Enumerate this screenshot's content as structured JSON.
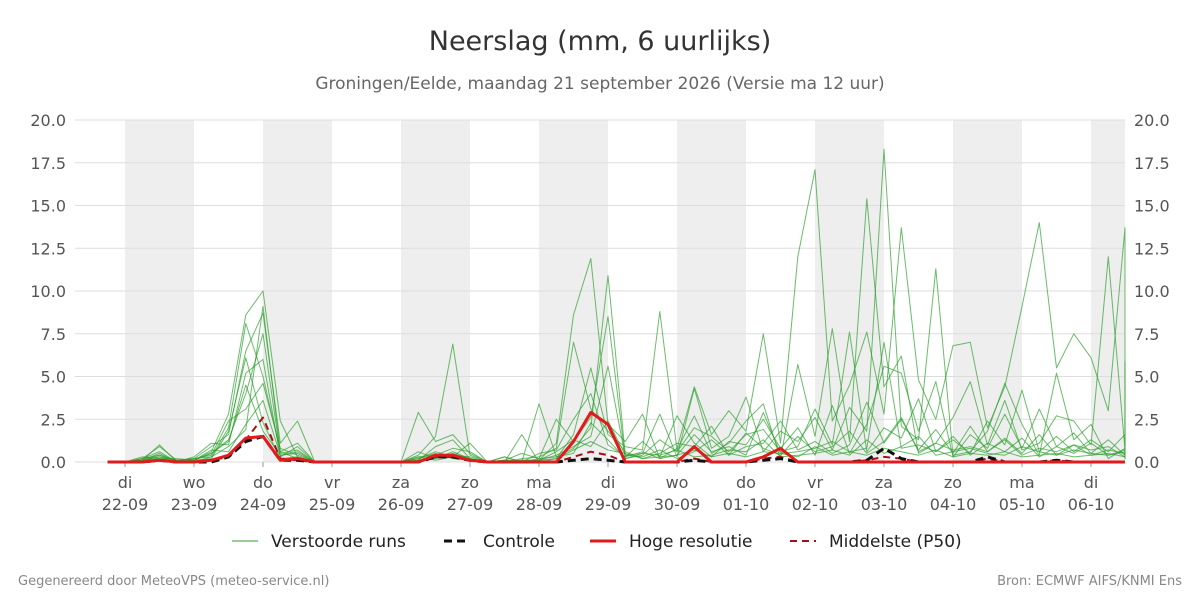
{
  "title": "Neerslag (mm, 6 uurlijks)",
  "subtitle": "Groningen/Eelde, maandag 21 september 2026 (Versie ma 12 uur)",
  "footer_left": "Gegenereerd door MeteoVPS (meteo-service.nl)",
  "footer_right": "Bron: ECMWF AIFS/KNMI Ens",
  "colors": {
    "ensemble": "#2ca02c",
    "control": "#111111",
    "hires": "#e31a1c",
    "median": "#a50f15",
    "weekend_shade": "#eeeeee",
    "grid": "#dddddd"
  },
  "chart_data": {
    "type": "line",
    "x_unit": "days from 22-09 00 UTC, 6-hourly steps",
    "ylim": [
      0,
      20
    ],
    "yticks": [
      "0.0",
      "2.5",
      "5.0",
      "7.5",
      "10.0",
      "12.5",
      "15.0",
      "17.5",
      "20.0"
    ],
    "grid": true,
    "legend_position": "bottom",
    "days": [
      {
        "weekday": "di",
        "date": "22-09"
      },
      {
        "weekday": "wo",
        "date": "23-09"
      },
      {
        "weekday": "do",
        "date": "24-09"
      },
      {
        "weekday": "vr",
        "date": "25-09"
      },
      {
        "weekday": "za",
        "date": "26-09"
      },
      {
        "weekday": "zo",
        "date": "27-09"
      },
      {
        "weekday": "ma",
        "date": "28-09"
      },
      {
        "weekday": "di",
        "date": "29-09"
      },
      {
        "weekday": "wo",
        "date": "30-09"
      },
      {
        "weekday": "do",
        "date": "01-10"
      },
      {
        "weekday": "vr",
        "date": "02-10"
      },
      {
        "weekday": "za",
        "date": "03-10"
      },
      {
        "weekday": "zo",
        "date": "04-10"
      },
      {
        "weekday": "ma",
        "date": "05-10"
      },
      {
        "weekday": "di",
        "date": "06-10"
      }
    ],
    "shaded_bands": [
      [
        0,
        1
      ],
      [
        2,
        3
      ],
      [
        4,
        5
      ],
      [
        6,
        7
      ],
      [
        8,
        9
      ],
      [
        10,
        11
      ],
      [
        12,
        13
      ],
      [
        14,
        14.5
      ]
    ],
    "x_start": -0.25,
    "x_step": 0.25,
    "legend": [
      "Verstoorde runs",
      "Controle",
      "Hoge resolutie",
      "Middelste (P50)"
    ],
    "series": [
      {
        "name": "Hoge resolutie",
        "role": "hires",
        "values": [
          0,
          0,
          0,
          0.1,
          0,
          0,
          0.1,
          0.4,
          1.4,
          1.5,
          0.1,
          0.2,
          0,
          0,
          0,
          0,
          0,
          0,
          0,
          0.4,
          0.4,
          0.1,
          0,
          0,
          0,
          0,
          0,
          1.2,
          2.9,
          2.2,
          0,
          0,
          0,
          0,
          0.9,
          0,
          0,
          0,
          0.3,
          0.8,
          0,
          0,
          0,
          0,
          0,
          0,
          0,
          0,
          0,
          0,
          0,
          0,
          0,
          0,
          0,
          0,
          0,
          0,
          0,
          0,
          0,
          0,
          0,
          0,
          0,
          0
        ]
      },
      {
        "name": "Controle",
        "role": "control",
        "values": [
          0,
          0,
          0,
          0.1,
          0,
          0,
          0,
          0.3,
          1.2,
          1.5,
          0.1,
          0.1,
          0,
          0,
          0,
          0,
          0,
          0,
          0,
          0.3,
          0.3,
          0.1,
          0,
          0,
          0,
          0,
          0,
          0.1,
          0.2,
          0.1,
          0,
          0,
          0,
          0,
          0.1,
          0,
          0,
          0,
          0.1,
          0.2,
          0,
          0,
          0,
          0,
          0.1,
          0.8,
          0.2,
          0,
          0,
          0,
          0,
          0.3,
          0,
          0,
          0,
          0.1,
          0,
          0,
          0,
          0,
          0,
          0,
          0,
          0,
          0,
          0
        ]
      },
      {
        "name": "Middelste (P50)",
        "role": "median",
        "values": [
          0,
          0,
          0,
          0.1,
          0,
          0,
          0.1,
          0.3,
          1.3,
          2.6,
          0.2,
          0.1,
          0,
          0,
          0,
          0,
          0,
          0,
          0,
          0.3,
          0.3,
          0.1,
          0,
          0,
          0,
          0,
          0,
          0.3,
          0.6,
          0.4,
          0,
          0,
          0,
          0,
          0.2,
          0,
          0,
          0,
          0.2,
          0.3,
          0,
          0,
          0,
          0,
          0.1,
          0.3,
          0.2,
          0,
          0,
          0,
          0,
          0.2,
          0,
          0,
          0,
          0.1,
          0,
          0,
          0,
          0,
          0,
          0,
          0,
          0,
          0,
          0
        ]
      },
      {
        "name": "Verstoorde runs",
        "role": "ensemble",
        "values": [
          0,
          0,
          0.1,
          0.4,
          0,
          0.1,
          0.6,
          2.8,
          8.6,
          10,
          2.4,
          0.3,
          0,
          0,
          0,
          0,
          0,
          0,
          2.9,
          1.2,
          1.6,
          0.5,
          0,
          0.3,
          0,
          0.1,
          1.1,
          8.6,
          11.9,
          2.2,
          1.2,
          2.8,
          0.2,
          0.8,
          4.4,
          1.6,
          3.0,
          1.8,
          7.5,
          1.1,
          12,
          17.1,
          2.4,
          4.5,
          7.6,
          2.8,
          13.7,
          4.8,
          2.5,
          6.8,
          7.0,
          2.0,
          4.4,
          9.1,
          14.0,
          5.5,
          7.5,
          6.1,
          3.0,
          13.7,
          5.6,
          1.9,
          7.3,
          0.9,
          3.2,
          6.6
        ]
      },
      {
        "name": "Verstoorde runs",
        "role": "ensemble",
        "values": [
          0,
          0,
          0.2,
          0.9,
          0.1,
          0.2,
          0.9,
          1.6,
          6.5,
          8.7,
          1.1,
          2.4,
          0,
          0,
          0,
          0,
          0,
          0,
          0.4,
          1.5,
          6.9,
          0.4,
          0,
          0,
          1.6,
          0,
          0.2,
          1.6,
          5.5,
          1.6,
          0.9,
          0.7,
          8.8,
          0.7,
          2.7,
          0.5,
          1.1,
          2.4,
          3.4,
          0.2,
          5.7,
          1.5,
          7.8,
          1.2,
          15.4,
          4.4,
          6.2,
          0.5,
          1.1,
          2.6,
          4.7,
          1.0,
          3.6,
          0.7,
          1.1,
          2.7,
          2.4,
          1.0,
          12.0,
          0.7,
          1.5,
          5.7,
          2.1,
          1.3,
          4.0,
          4.6
        ]
      },
      {
        "name": "Verstoorde runs",
        "role": "ensemble",
        "values": [
          0,
          0,
          0.1,
          1.0,
          0,
          0,
          0.3,
          2.0,
          8.1,
          5.0,
          0.6,
          1.1,
          0,
          0,
          0,
          0,
          0,
          0,
          0.2,
          0.6,
          0.3,
          1.1,
          0,
          0.1,
          0,
          3.4,
          0.3,
          0.8,
          2.0,
          10.9,
          0.4,
          0.5,
          2.8,
          0.3,
          4.3,
          0.8,
          1.5,
          3.8,
          0.6,
          1.8,
          1.2,
          2.6,
          0.7,
          3.2,
          1.8,
          18.3,
          2.1,
          1.3,
          11.3,
          0.4,
          0.6,
          1.8,
          4.6,
          2.2,
          0.4,
          5.2,
          1.3,
          2.2,
          0.2,
          0.8,
          1.3,
          2.4,
          0.4,
          0.6,
          0.8,
          5.9
        ]
      },
      {
        "name": "Verstoorde runs",
        "role": "ensemble",
        "values": [
          0,
          0,
          0.3,
          0.2,
          0.2,
          0.1,
          0.5,
          1.3,
          4.0,
          7.5,
          0.5,
          0.7,
          0,
          0,
          0,
          0,
          0,
          0,
          0.1,
          0.9,
          1.3,
          0.2,
          0,
          0.3,
          0,
          0.5,
          0.7,
          2.5,
          4.0,
          1.0,
          0.3,
          1.2,
          0.3,
          2.7,
          1.1,
          0.3,
          1.2,
          1.0,
          2.5,
          0.8,
          2.0,
          0.4,
          3.3,
          0.5,
          2.2,
          5.6,
          5.2,
          1.8,
          4.7,
          0.3,
          1.6,
          0.8,
          2.8,
          0.8,
          3.1,
          0.9,
          1.7,
          0.5,
          1.3,
          0.4,
          2.3,
          0.6,
          1.4,
          0.4,
          0.9,
          1.2
        ]
      },
      {
        "name": "Verstoorde runs",
        "role": "ensemble",
        "values": [
          0,
          0,
          0.2,
          0.6,
          0,
          0.3,
          1.1,
          1.0,
          5.2,
          6.0,
          0.3,
          0.9,
          0,
          0,
          0,
          0,
          0,
          0,
          0.3,
          0.4,
          0.8,
          0.6,
          0,
          0.1,
          0.5,
          0.2,
          2.5,
          1.2,
          2.6,
          8.5,
          0.2,
          0.4,
          1.3,
          0.6,
          2.0,
          1.5,
          0.6,
          1.6,
          1.9,
          0.6,
          0.9,
          3.1,
          1.0,
          7.6,
          0.6,
          2.0,
          1.4,
          3.7,
          0.6,
          1.3,
          0.5,
          2.4,
          1.0,
          4.2,
          0.6,
          1.5,
          0.6,
          1.3,
          0.6,
          1.6,
          0.4,
          1.8,
          0.3,
          0.9,
          0.3,
          1.5
        ]
      },
      {
        "name": "Verstoorde runs",
        "role": "ensemble",
        "values": [
          0,
          0,
          0.1,
          0.3,
          0.1,
          0.2,
          0.4,
          2.4,
          3.1,
          4.6,
          0.8,
          0.4,
          0,
          0,
          0,
          0,
          0,
          0,
          0.6,
          0.2,
          0.6,
          0.2,
          0,
          0,
          0.2,
          0.3,
          0.8,
          7.0,
          3.1,
          1.8,
          0.6,
          0.2,
          0.5,
          1.1,
          0.9,
          2.1,
          0.4,
          0.9,
          1.1,
          2.4,
          0.7,
          1.2,
          0.5,
          1.0,
          3.5,
          1.1,
          2.5,
          0.7,
          1.9,
          0.5,
          2.1,
          0.6,
          1.4,
          0.5,
          1.6,
          0.4,
          1.0,
          0.7,
          0.9,
          0.3,
          1.0,
          0.5,
          0.8,
          0.2,
          0.6,
          0.4
        ]
      },
      {
        "name": "Verstoorde runs",
        "role": "ensemble",
        "values": [
          0,
          0,
          0.1,
          0.5,
          0,
          0.1,
          0.7,
          0.6,
          2.2,
          3.6,
          0.4,
          0.6,
          0,
          0,
          0,
          0,
          0,
          0,
          0.1,
          0.3,
          0.4,
          0.3,
          0,
          0.1,
          0,
          0.1,
          0.4,
          0.9,
          1.5,
          5.6,
          0.3,
          0.6,
          0.2,
          0.4,
          1.6,
          0.6,
          0.9,
          0.4,
          2.9,
          0.5,
          0.6,
          0.8,
          1.2,
          0.6,
          0.8,
          7.0,
          0.8,
          1.0,
          0.6,
          1.5,
          0.4,
          1.1,
          0.6,
          1.4,
          0.3,
          0.9,
          0.5,
          1.1,
          0.4,
          0.7,
          0.3,
          0.8,
          0.4,
          0.6,
          0.2,
          0.9
        ]
      },
      {
        "name": "Verstoorde runs",
        "role": "ensemble",
        "values": [
          0,
          0,
          0.2,
          0.4,
          0.1,
          0.1,
          0.2,
          1.8,
          6.1,
          2.3,
          0.2,
          0.3,
          0,
          0,
          0,
          0,
          0,
          0,
          0.2,
          0.5,
          0.2,
          0.1,
          0,
          0,
          0.1,
          0.1,
          0.6,
          1.3,
          0.9,
          2.4,
          0.4,
          0.3,
          0.7,
          0.2,
          0.6,
          1.3,
          0.4,
          1.7,
          0.8,
          0.4,
          1.5,
          0.6,
          0.9,
          1.8,
          0.5,
          1.2,
          2.6,
          0.6,
          1.1,
          0.7,
          0.9,
          0.6,
          1.3,
          0.4,
          0.8,
          0.6,
          1.0,
          0.4,
          0.7,
          0.5,
          0.6,
          0.3,
          0.7,
          0.3,
          0.5,
          0.3
        ]
      },
      {
        "name": "Verstoorde runs",
        "role": "ensemble",
        "values": [
          0,
          0,
          0.1,
          0.2,
          0,
          0.2,
          0.3,
          0.9,
          1.9,
          9.1,
          0.6,
          0.2,
          0,
          0,
          0,
          0,
          0,
          0,
          0.1,
          0.2,
          0.5,
          0.2,
          0,
          0,
          0,
          0.2,
          0.3,
          0.5,
          2.3,
          1.3,
          0.2,
          0.5,
          0.4,
          0.7,
          0.3,
          0.4,
          0.7,
          0.6,
          1.3,
          0.3,
          0.4,
          0.5,
          0.7,
          0.4,
          1.3,
          0.5,
          0.9,
          1.5,
          0.4,
          0.6,
          0.8,
          0.5,
          0.4,
          0.9,
          0.6,
          0.4,
          0.7,
          0.5,
          0.4,
          0.6,
          0.3,
          0.5,
          0.4,
          0.4,
          0.3,
          0.6
        ]
      },
      {
        "name": "Verstoorde runs",
        "role": "ensemble",
        "values": [
          0,
          0,
          0.1,
          0.3,
          0,
          0.1,
          0.5,
          1.2,
          4.5,
          1.8,
          0.4,
          0.5,
          0,
          0,
          0,
          0,
          0,
          0,
          0.3,
          0.1,
          0.3,
          0.1,
          0,
          0.1,
          0.1,
          0.1,
          0.2,
          0.7,
          1.2,
          0.7,
          0.5,
          0.2,
          0.3,
          0.4,
          0.7,
          0.3,
          0.5,
          0.3,
          0.6,
          0.5,
          0.3,
          0.9,
          0.4,
          0.6,
          0.4,
          0.8,
          0.6,
          0.4,
          0.7,
          0.3,
          0.5,
          0.4,
          0.6,
          0.3,
          0.4,
          0.5,
          0.3,
          0.4,
          0.5,
          0.3,
          0.4,
          0.3,
          0.3,
          0.2,
          0.4,
          0.3
        ]
      }
    ]
  }
}
